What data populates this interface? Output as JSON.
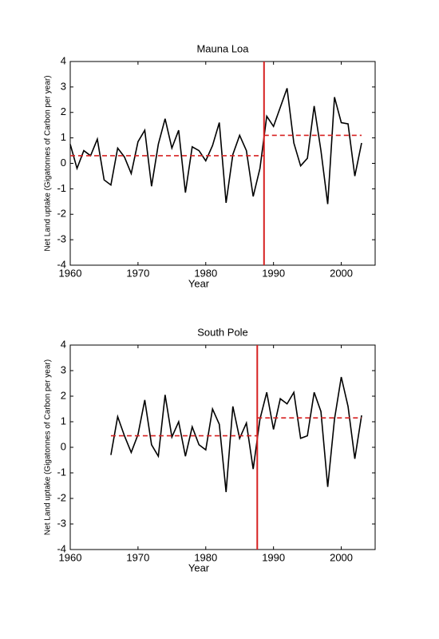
{
  "chart_data": [
    {
      "type": "line",
      "title": "Mauna Loa",
      "x_label": "Year",
      "y_label": "Net Land uptake (Gigatonnes of Carbon per year)",
      "x": [
        1960,
        1961,
        1962,
        1963,
        1964,
        1965,
        1966,
        1967,
        1968,
        1969,
        1970,
        1971,
        1972,
        1973,
        1974,
        1975,
        1976,
        1977,
        1978,
        1979,
        1980,
        1981,
        1982,
        1983,
        1984,
        1985,
        1986,
        1987,
        1988,
        1989,
        1990,
        1991,
        1992,
        1993,
        1994,
        1995,
        1996,
        1997,
        1998,
        1999,
        2000,
        2001,
        2002,
        2003
      ],
      "series": [
        {
          "color": "#000000",
          "values": [
            0.75,
            -0.2,
            0.5,
            0.3,
            0.95,
            -0.65,
            -0.85,
            0.6,
            0.25,
            -0.4,
            0.85,
            1.3,
            -0.9,
            0.75,
            1.75,
            0.6,
            1.3,
            -1.15,
            0.65,
            0.5,
            0.1,
            0.7,
            1.6,
            -1.55,
            0.35,
            1.1,
            0.5,
            -1.3,
            -0.2,
            1.85,
            1.45,
            2.2,
            2.95,
            0.8,
            -0.1,
            0.2,
            2.25,
            0.5,
            -1.6,
            2.6,
            1.6,
            1.55,
            -0.5,
            0.8
          ]
        }
      ],
      "mean_lines": [
        {
          "x": [
            1960,
            1988.6
          ],
          "value": 0.3
        },
        {
          "x": [
            1988.6,
            2003
          ],
          "value": 1.1
        }
      ],
      "breakpoint": 1988.6,
      "marker_color": "#d62020",
      "xlim": [
        1960,
        2005
      ],
      "xticks": [
        1960,
        1970,
        1980,
        1990,
        2000
      ],
      "ylim": [
        -4,
        4
      ],
      "yticks": [
        -4,
        -3,
        -2,
        -1,
        0,
        1,
        2,
        3,
        4
      ]
    },
    {
      "type": "line",
      "title": "South Pole",
      "x_label": "Year",
      "y_label": "Net Land uptake (Gigatonnes of Carbon per year)",
      "x": [
        1966,
        1967,
        1968,
        1969,
        1970,
        1971,
        1972,
        1973,
        1974,
        1975,
        1976,
        1977,
        1978,
        1979,
        1980,
        1981,
        1982,
        1983,
        1984,
        1985,
        1986,
        1987,
        1988,
        1989,
        1990,
        1991,
        1992,
        1993,
        1994,
        1995,
        1996,
        1997,
        1998,
        1999,
        2000,
        2001,
        2002,
        2003
      ],
      "series": [
        {
          "color": "#000000",
          "values": [
            -0.3,
            1.2,
            0.45,
            -0.2,
            0.5,
            1.85,
            0.1,
            -0.35,
            2.05,
            0.4,
            1.0,
            -0.35,
            0.8,
            0.1,
            -0.1,
            1.5,
            0.9,
            -1.75,
            1.6,
            0.35,
            0.95,
            -0.85,
            1.1,
            2.15,
            0.7,
            1.9,
            1.7,
            2.15,
            0.35,
            0.45,
            2.15,
            1.4,
            -1.55,
            1.1,
            2.75,
            1.6,
            -0.45,
            1.25
          ]
        }
      ],
      "mean_lines": [
        {
          "x": [
            1966,
            1987.6
          ],
          "value": 0.45
        },
        {
          "x": [
            1987.6,
            2003
          ],
          "value": 1.15
        }
      ],
      "breakpoint": 1987.6,
      "marker_color": "#d62020",
      "xlim": [
        1960,
        2005
      ],
      "xticks": [
        1960,
        1970,
        1980,
        1990,
        2000
      ],
      "ylim": [
        -4,
        4
      ],
      "yticks": [
        -4,
        -3,
        -2,
        -1,
        0,
        1,
        2,
        3,
        4
      ]
    }
  ]
}
